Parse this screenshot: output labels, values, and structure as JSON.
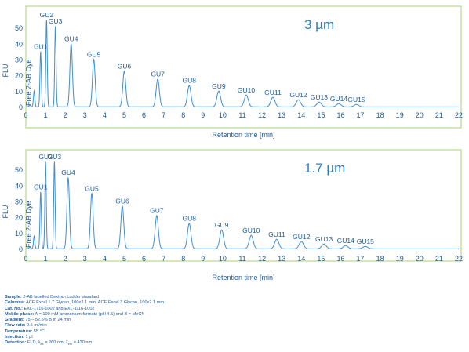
{
  "chart_data": [
    {
      "type": "line",
      "particle_label": "3 µm",
      "ylabel": "FLU",
      "xlabel": "Retention time [min]",
      "xlim": [
        0,
        22
      ],
      "ylim": [
        -2,
        58
      ],
      "x_ticks": [
        0,
        1,
        2,
        3,
        4,
        5,
        6,
        7,
        8,
        9,
        10,
        11,
        12,
        13,
        14,
        15,
        16,
        17,
        18,
        19,
        20,
        21,
        22
      ],
      "y_ticks": [
        0,
        10,
        20,
        30,
        40,
        50
      ],
      "grid": false,
      "series": [
        {
          "peaks": [
            {
              "label": "Free 2-AB Dye",
              "x": 0.42,
              "y": 10
            },
            {
              "label": "GU1",
              "x": 0.75,
              "y": 35
            },
            {
              "label": "GU2",
              "x": 1.05,
              "y": 55
            },
            {
              "label": "GU3",
              "x": 1.5,
              "y": 51
            },
            {
              "label": "GU4",
              "x": 2.3,
              "y": 40
            },
            {
              "label": "GU5",
              "x": 3.45,
              "y": 30
            },
            {
              "label": "GU6",
              "x": 5.0,
              "y": 22.5
            },
            {
              "label": "GU7",
              "x": 6.7,
              "y": 17.5
            },
            {
              "label": "GU8",
              "x": 8.3,
              "y": 13.5
            },
            {
              "label": "GU9",
              "x": 9.8,
              "y": 10
            },
            {
              "label": "GU10",
              "x": 11.2,
              "y": 7.5
            },
            {
              "label": "GU11",
              "x": 12.55,
              "y": 6
            },
            {
              "label": "GU12",
              "x": 13.85,
              "y": 4.5
            },
            {
              "label": "GU13",
              "x": 14.9,
              "y": 3
            },
            {
              "label": "GU14",
              "x": 15.9,
              "y": 2
            },
            {
              "label": "GU15",
              "x": 16.8,
              "y": 1.5
            }
          ]
        }
      ]
    },
    {
      "type": "line",
      "particle_label": "1.7 µm",
      "ylabel": "FLU",
      "xlabel": "Retention time [min]",
      "xlim": [
        0,
        22
      ],
      "ylim": [
        -2,
        58
      ],
      "x_ticks": [
        0,
        1,
        2,
        3,
        4,
        5,
        6,
        7,
        8,
        9,
        10,
        11,
        12,
        13,
        14,
        15,
        16,
        17,
        18,
        19,
        20,
        21,
        22
      ],
      "y_ticks": [
        0,
        10,
        20,
        30,
        40,
        50
      ],
      "grid": false,
      "series": [
        {
          "peaks": [
            {
              "label": "Free 2-AB Dye",
              "x": 0.42,
              "y": 8
            },
            {
              "label": "GU1",
              "x": 0.75,
              "y": 36
            },
            {
              "label": "GU2",
              "x": 1.0,
              "y": 55
            },
            {
              "label": "GU3",
              "x": 1.45,
              "y": 55
            },
            {
              "label": "GU4",
              "x": 2.15,
              "y": 45
            },
            {
              "label": "GU5",
              "x": 3.35,
              "y": 35
            },
            {
              "label": "GU6",
              "x": 4.9,
              "y": 27
            },
            {
              "label": "GU7",
              "x": 6.65,
              "y": 21
            },
            {
              "label": "GU8",
              "x": 8.3,
              "y": 16
            },
            {
              "label": "GU9",
              "x": 9.95,
              "y": 12
            },
            {
              "label": "GU10",
              "x": 11.45,
              "y": 8.5
            },
            {
              "label": "GU11",
              "x": 12.75,
              "y": 6
            },
            {
              "label": "GU12",
              "x": 14.0,
              "y": 4.5
            },
            {
              "label": "GU13",
              "x": 15.15,
              "y": 3
            },
            {
              "label": "GU14",
              "x": 16.25,
              "y": 2
            },
            {
              "label": "GU15",
              "x": 17.25,
              "y": 1.5
            }
          ]
        }
      ]
    }
  ],
  "conditions": {
    "sample_label": "Sample:",
    "sample_value": "2-AB labelled Dextran Ladder standard",
    "columns_label": "Columns:",
    "columns_value": "ACE Excel 1.7 Glycan, 100x2.1 mm; ACE Excel 3 Glycan, 100x2.1 mm",
    "cat_label": "Cat. No.:",
    "cat_value": "EXL-1716-1002 and EXL-1116-1002",
    "mobile_label": "Mobile phase:",
    "mobile_value": "A = 100 mM ammonium formate (pH 4.5) and B = MeCN",
    "gradient_label": "Gradient:",
    "gradient_value": "75 – 52.5% B in 24 min",
    "flow_label": "Flow rate:",
    "flow_value": "0.5 ml/min",
    "temp_label": "Temperature:",
    "temp_value": "55 °C",
    "injection_label": "Injection:",
    "injection_value": "1 µl",
    "detection_label": "Detection:",
    "detection_value_a": "FLD, λ",
    "ex_sub": "ex",
    "detection_value_b": " = 260 nm, λ",
    "em_sub": "em",
    "detection_value_c": " = 430 nm"
  },
  "colors": {
    "trace": "#3f8fd1",
    "frame": "#b7d98b",
    "text": "#1f5a96",
    "accent_label": "#2a7fbf"
  }
}
